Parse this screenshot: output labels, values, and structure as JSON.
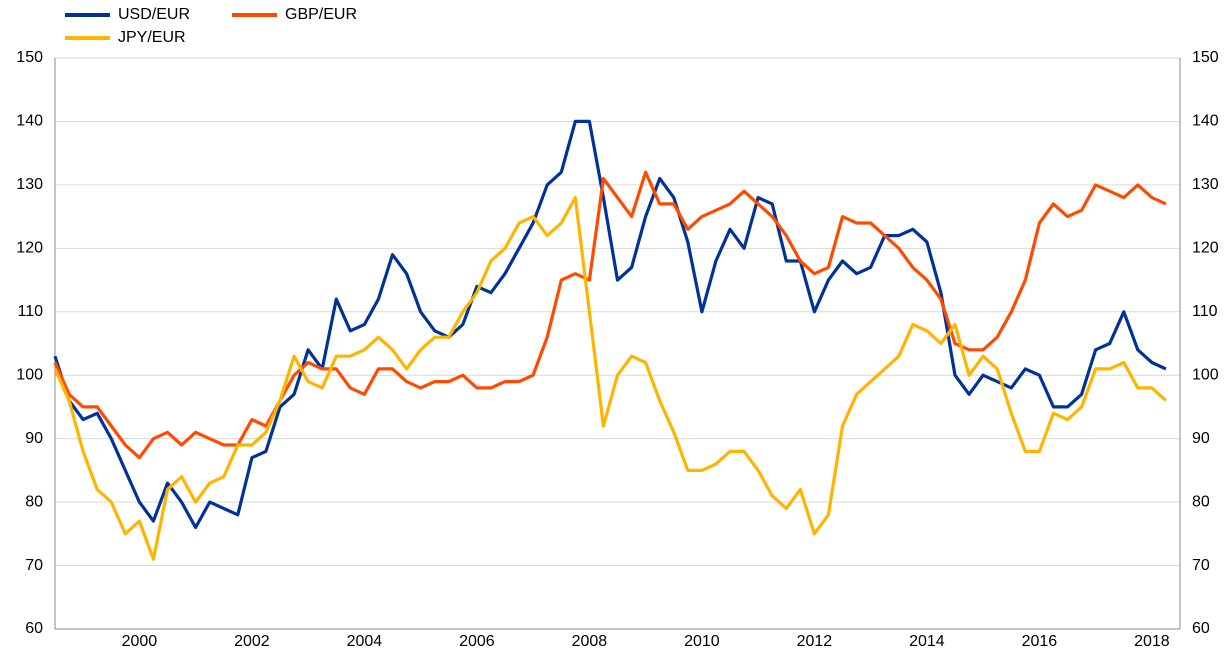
{
  "chart_data": {
    "type": "line",
    "x": [
      1999.0,
      1999.25,
      1999.5,
      1999.75,
      2000.0,
      2000.25,
      2000.5,
      2000.75,
      2001.0,
      2001.25,
      2001.5,
      2001.75,
      2002.0,
      2002.25,
      2002.5,
      2002.75,
      2003.0,
      2003.25,
      2003.5,
      2003.75,
      2004.0,
      2004.25,
      2004.5,
      2004.75,
      2005.0,
      2005.25,
      2005.5,
      2005.75,
      2006.0,
      2006.25,
      2006.5,
      2006.75,
      2007.0,
      2007.25,
      2007.5,
      2007.75,
      2008.0,
      2008.25,
      2008.5,
      2008.75,
      2009.0,
      2009.25,
      2009.5,
      2009.75,
      2010.0,
      2010.25,
      2010.5,
      2010.75,
      2011.0,
      2011.25,
      2011.5,
      2011.75,
      2012.0,
      2012.25,
      2012.5,
      2012.75,
      2013.0,
      2013.25,
      2013.5,
      2013.75,
      2014.0,
      2014.25,
      2014.5,
      2014.75,
      2015.0,
      2015.25,
      2015.5,
      2015.75,
      2016.0,
      2016.25,
      2016.5,
      2016.75,
      2017.0,
      2017.25,
      2017.5,
      2017.75,
      2018.0,
      2018.25,
      2018.5,
      2018.75
    ],
    "series": [
      {
        "name": "USD/EUR",
        "color": "#003299",
        "values": [
          103,
          96,
          93,
          94,
          90,
          85,
          80,
          77,
          83,
          80,
          76,
          80,
          79,
          78,
          87,
          88,
          95,
          97,
          104,
          101,
          112,
          107,
          108,
          112,
          119,
          116,
          110,
          107,
          106,
          108,
          114,
          113,
          116,
          120,
          124,
          130,
          132,
          140,
          140,
          128,
          115,
          117,
          125,
          131,
          128,
          121,
          110,
          118,
          123,
          120,
          128,
          127,
          118,
          118,
          110,
          115,
          118,
          116,
          117,
          122,
          122,
          123,
          121,
          113,
          100,
          97,
          100,
          99,
          98,
          101,
          100,
          95,
          95,
          97,
          104,
          105,
          110,
          104,
          102,
          101
        ]
      },
      {
        "name": "GBP/EUR",
        "color": "#ff4b00",
        "values": [
          102,
          97,
          95,
          95,
          92,
          89,
          87,
          90,
          91,
          89,
          91,
          90,
          89,
          89,
          93,
          92,
          96,
          100,
          102,
          101,
          101,
          98,
          97,
          101,
          101,
          99,
          98,
          99,
          99,
          100,
          98,
          98,
          99,
          99,
          100,
          106,
          115,
          116,
          115,
          131,
          128,
          125,
          132,
          127,
          127,
          123,
          125,
          126,
          127,
          129,
          127,
          125,
          122,
          118,
          116,
          117,
          125,
          124,
          124,
          122,
          120,
          117,
          115,
          112,
          105,
          104,
          104,
          106,
          110,
          115,
          124,
          127,
          125,
          126,
          130,
          129,
          128,
          130,
          128,
          127
        ]
      },
      {
        "name": "JPY/EUR",
        "color": "#ffb400",
        "values": [
          101,
          96,
          88,
          82,
          80,
          75,
          77,
          71,
          82,
          84,
          80,
          83,
          84,
          89,
          89,
          91,
          96,
          103,
          99,
          98,
          103,
          103,
          104,
          106,
          104,
          101,
          104,
          106,
          106,
          110,
          113,
          118,
          120,
          124,
          125,
          122,
          124,
          128,
          110,
          92,
          100,
          103,
          102,
          96,
          91,
          85,
          85,
          86,
          88,
          88,
          85,
          81,
          79,
          82,
          75,
          78,
          92,
          97,
          99,
          101,
          103,
          108,
          107,
          105,
          108,
          100,
          103,
          101,
          94,
          88,
          88,
          94,
          93,
          95,
          101,
          101,
          102,
          98,
          98,
          96
        ]
      }
    ],
    "xlim": [
      1999,
      2019
    ],
    "xticks": [
      {
        "value": 2000.5,
        "label": "2000"
      },
      {
        "value": 2002.5,
        "label": "2002"
      },
      {
        "value": 2004.5,
        "label": "2004"
      },
      {
        "value": 2006.5,
        "label": "2006"
      },
      {
        "value": 2008.5,
        "label": "2008"
      },
      {
        "value": 2010.5,
        "label": "2010"
      },
      {
        "value": 2012.5,
        "label": "2012"
      },
      {
        "value": 2014.5,
        "label": "2014"
      },
      {
        "value": 2016.5,
        "label": "2016"
      },
      {
        "value": 2018.5,
        "label": "2018"
      }
    ],
    "ylim": [
      60,
      150
    ],
    "yticks": [
      60,
      70,
      80,
      90,
      100,
      110,
      120,
      130,
      140,
      150
    ],
    "y2lim": [
      60,
      150
    ],
    "y2ticks": [
      60,
      70,
      80,
      90,
      100,
      110,
      120,
      130,
      140,
      150
    ],
    "grid": true
  }
}
